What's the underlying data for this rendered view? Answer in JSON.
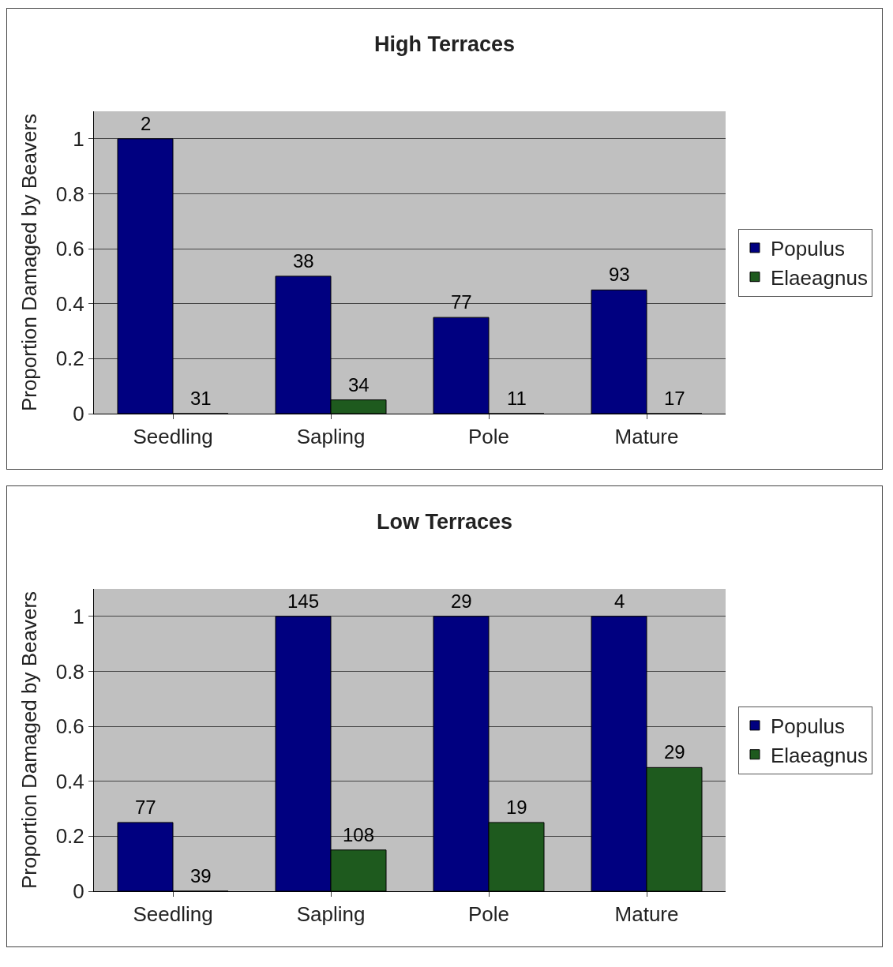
{
  "chart_data": [
    {
      "type": "bar",
      "title": "High Terraces",
      "ylabel": "Proportion Damaged by Beavers",
      "categories": [
        "Seedling",
        "Sapling",
        "Pole",
        "Mature"
      ],
      "series": [
        {
          "name": "Populus",
          "color": "#000080",
          "values": [
            1,
            0.5,
            0.35,
            0.45
          ]
        },
        {
          "name": "Elaeagnus",
          "color": "#1e5a1e",
          "values": [
            0,
            0.05,
            0,
            0
          ]
        }
      ],
      "annotations": [
        {
          "text": "2",
          "x": "Seedling",
          "y": 1
        },
        {
          "text": "38",
          "x": "Sapling",
          "y": 0.5
        },
        {
          "text": "77",
          "x": "Pole",
          "y": 0.35
        },
        {
          "text": "93",
          "x": "Mature",
          "y": 0.45
        },
        {
          "text": "31",
          "x": "Seedling",
          "y": 0
        },
        {
          "text": "34",
          "x": "Sapling",
          "y": 0.05
        },
        {
          "text": "11",
          "x": "Pole",
          "y": 0
        },
        {
          "text": "17",
          "x": "Mature",
          "y": 0
        }
      ],
      "ylim": [
        0,
        1.1
      ],
      "yticks": [
        0,
        0.2,
        0.4,
        0.6,
        0.8,
        1
      ],
      "grid": "y",
      "legend": "right"
    },
    {
      "type": "bar",
      "title": "Low Terraces",
      "ylabel": "Proportion Damaged by Beavers",
      "categories": [
        "Seedling",
        "Sapling",
        "Pole",
        "Mature"
      ],
      "series": [
        {
          "name": "Populus",
          "color": "#000080",
          "values": [
            0.25,
            1,
            1,
            1
          ]
        },
        {
          "name": "Elaeagnus",
          "color": "#1e5a1e",
          "values": [
            0,
            0.15,
            0.25,
            0.45
          ]
        }
      ],
      "annotations": [
        {
          "text": "77",
          "x": "Seedling",
          "y": 0.25
        },
        {
          "text": "145",
          "x": "Sapling",
          "y": 1
        },
        {
          "text": "29",
          "x": "Pole",
          "y": 1
        },
        {
          "text": "4",
          "x": "Mature",
          "y": 1
        },
        {
          "text": "39",
          "x": "Seedling",
          "y": 0
        },
        {
          "text": "108",
          "x": "Sapling",
          "y": 0.15
        },
        {
          "text": "19",
          "x": "Pole",
          "y": 0.25
        },
        {
          "text": "29",
          "x": "Mature",
          "y": 0.45
        }
      ],
      "ylim": [
        0,
        1.1
      ],
      "yticks": [
        0,
        0.2,
        0.4,
        0.6,
        0.8,
        1
      ],
      "grid": "y",
      "legend": "right"
    }
  ]
}
